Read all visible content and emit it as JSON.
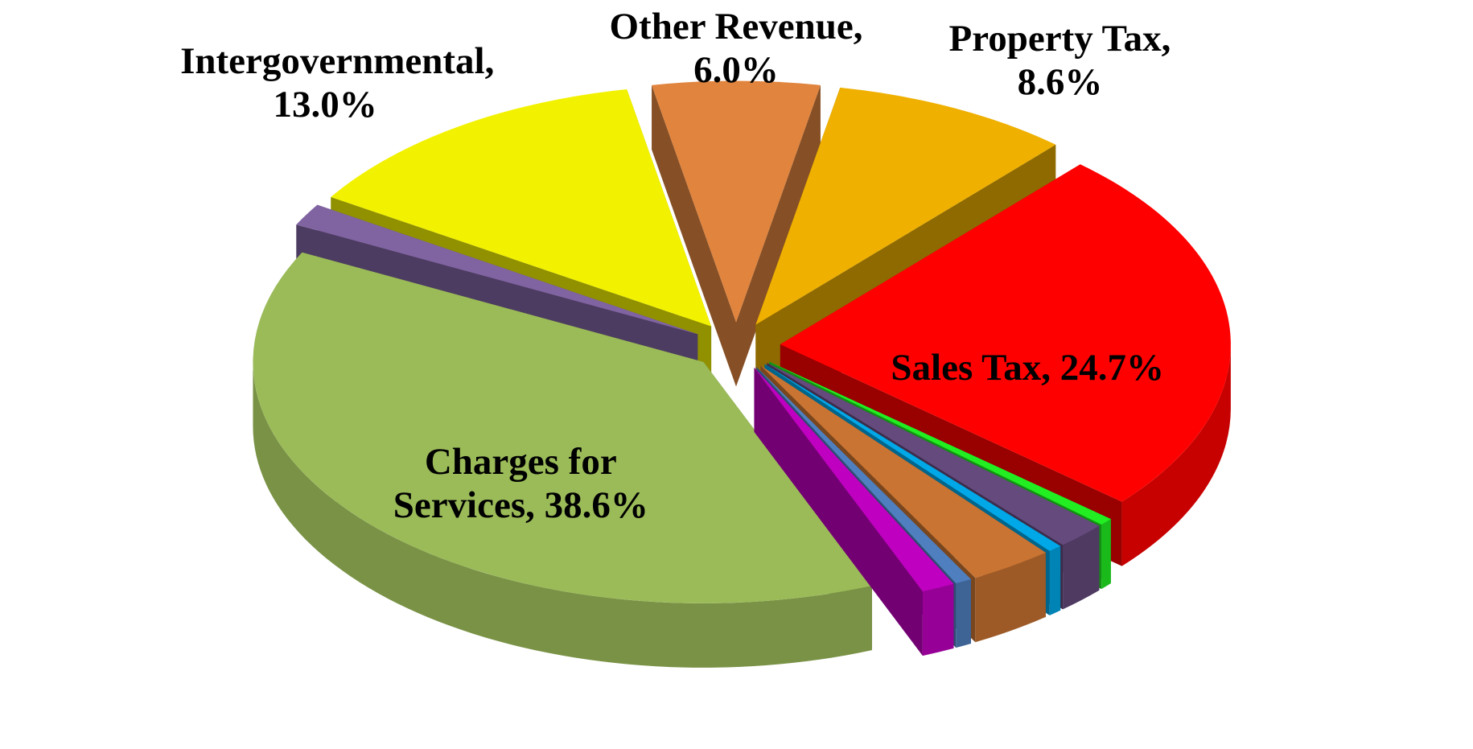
{
  "chart_data": {
    "type": "pie3d",
    "categories": [
      "Other Revenue,",
      "Property Tax,",
      "Sales Tax,",
      null,
      null,
      null,
      null,
      null,
      null,
      "Charges for Services,",
      null,
      "Intergovernmental,"
    ],
    "values": [
      6.0,
      8.6,
      24.7,
      0.5,
      1.8,
      0.5,
      3.0,
      0.6,
      1.2,
      38.6,
      1.5,
      13.0
    ],
    "value_labels": [
      "6.0%",
      "8.6%",
      "24.7%",
      null,
      null,
      null,
      null,
      null,
      null,
      "38.6%",
      null,
      "13.0%"
    ],
    "colors": [
      "#e0843e",
      "#efb000",
      "#ff0000",
      "#22ee22",
      "#654a7d",
      "#00a8e8",
      "#c97432",
      "#4f7fbf",
      "#c000c0",
      "#9bbb59",
      "#8064a2",
      "#f2f200"
    ]
  }
}
